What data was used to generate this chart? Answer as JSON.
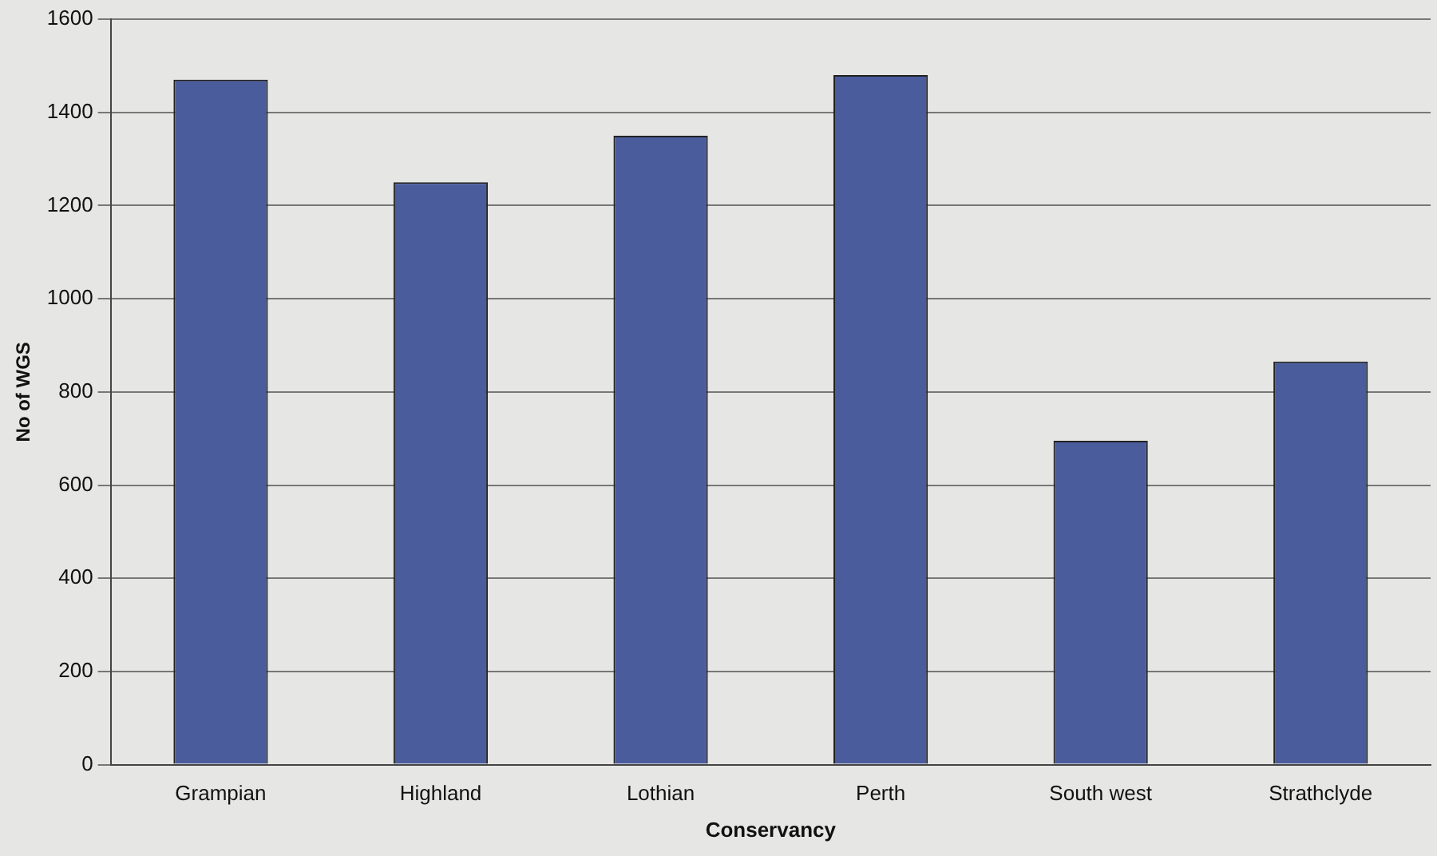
{
  "chart_data": {
    "type": "bar",
    "xlabel": "Conservancy",
    "ylabel": "No of WGS",
    "categories": [
      "Grampian",
      "Highland",
      "Lothian",
      "Perth",
      "South west",
      "Strathclyde"
    ],
    "values": [
      1470,
      1250,
      1350,
      1480,
      695,
      865
    ],
    "color": "#4a5c9c",
    "ylim": [
      0,
      1600
    ],
    "yticks": [
      0,
      200,
      400,
      600,
      800,
      1000,
      1200,
      1400,
      1600
    ],
    "grid": "y",
    "legend": false
  }
}
